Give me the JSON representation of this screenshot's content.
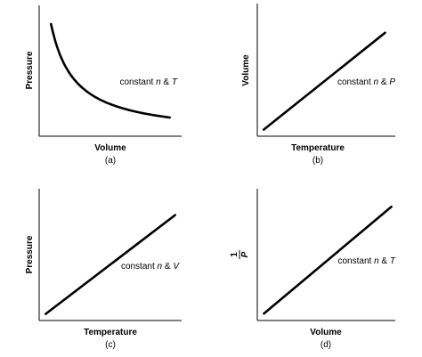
{
  "chart_data": [
    {
      "panel": "(a)",
      "type": "line",
      "title": "",
      "xlabel": "Volume",
      "ylabel": "Pressure",
      "annotation": {
        "prefix": "constant ",
        "vars": [
          "n",
          "T"
        ],
        "sep": " & "
      },
      "relationship": "inverse",
      "x": [
        1.0,
        1.25,
        1.5,
        2.0,
        2.5,
        3.0,
        3.5,
        4.0,
        5.0,
        6.0
      ],
      "y": [
        6.0,
        4.8,
        4.0,
        3.0,
        2.4,
        2.0,
        1.71,
        1.5,
        1.2,
        1.0
      ],
      "xlim": [
        0.5,
        6.5
      ],
      "ylim": [
        0,
        7
      ]
    },
    {
      "panel": "(b)",
      "type": "line",
      "title": "",
      "xlabel": "Temperature",
      "ylabel": "Volume",
      "annotation": {
        "prefix": "constant ",
        "vars": [
          "n",
          "P"
        ],
        "sep": " & "
      },
      "relationship": "linear",
      "x": [
        0.5,
        10
      ],
      "y": [
        0.5,
        7.8
      ],
      "xlim": [
        0,
        10.8
      ],
      "ylim": [
        0,
        10
      ]
    },
    {
      "panel": "(c)",
      "type": "line",
      "title": "",
      "xlabel": "Temperature",
      "ylabel": "Pressure",
      "annotation": {
        "prefix": "constant ",
        "vars": [
          "n",
          "V"
        ],
        "sep": " & "
      },
      "relationship": "linear",
      "x": [
        0.5,
        10.5
      ],
      "y": [
        0.5,
        8.0
      ],
      "xlim": [
        0,
        11
      ],
      "ylim": [
        0,
        10
      ]
    },
    {
      "panel": "(d)",
      "type": "line",
      "title": "",
      "xlabel": "Volume",
      "ylabel": {
        "numerator": "1",
        "denominator": "P"
      },
      "annotation": {
        "prefix": "constant ",
        "vars": [
          "n",
          "T"
        ],
        "sep": " & "
      },
      "relationship": "linear",
      "x": [
        0.5,
        10.2
      ],
      "y": [
        0.5,
        8.2
      ],
      "xlim": [
        0,
        10.5
      ],
      "ylim": [
        0,
        9.5
      ]
    }
  ]
}
